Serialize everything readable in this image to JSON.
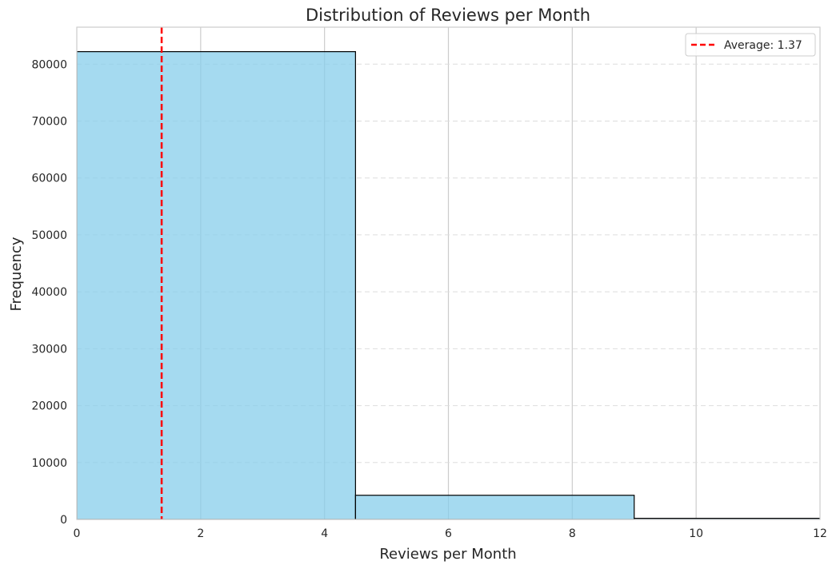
{
  "chart_data": {
    "type": "bar",
    "subtype": "histogram",
    "title": "Distribution of Reviews per Month",
    "xlabel": "Reviews per Month",
    "ylabel": "Frequency",
    "xlim": [
      0,
      12
    ],
    "ylim": [
      0,
      86500
    ],
    "xticks": [
      0,
      2,
      4,
      6,
      8,
      10,
      12
    ],
    "yticks": [
      0,
      10000,
      20000,
      30000,
      40000,
      50000,
      60000,
      70000,
      80000
    ],
    "bins": [
      {
        "x0": 0,
        "x1": 4.5,
        "value": 82200
      },
      {
        "x0": 4.5,
        "x1": 9.0,
        "value": 4250
      },
      {
        "x0": 9.0,
        "x1": 13.5,
        "value": 200
      }
    ],
    "average": {
      "value": 1.37,
      "label": "Average: 1.37",
      "color": "#ff0000"
    },
    "bar_color": "#87ceeb",
    "bar_edge_color": "#000000",
    "grid": {
      "x": true,
      "y": true,
      "y_style": "dashed"
    },
    "legend_position": "top-right"
  }
}
